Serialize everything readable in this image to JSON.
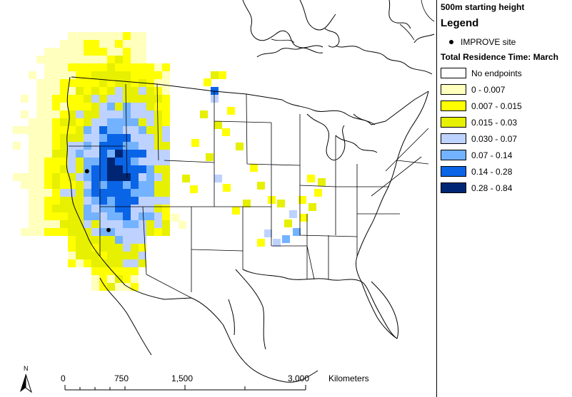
{
  "heading": "500m starting height",
  "legend": {
    "title": "Legend",
    "site_label": "IMPROVE site",
    "subtitle": "Total Residence Time: March",
    "classes": [
      {
        "label": "No endpoints",
        "color": "#ffffff"
      },
      {
        "label": "0 - 0.007",
        "color": "#ffffbe"
      },
      {
        "label": "0.007 - 0.015",
        "color": "#ffff00"
      },
      {
        "label": "0.015 - 0.03",
        "color": "#e6f000"
      },
      {
        "label": "0.030 - 0.07",
        "color": "#bed2ff"
      },
      {
        "label": "0.07 - 0.14",
        "color": "#73b2ff"
      },
      {
        "label": "0.14 - 0.28",
        "color": "#0a64e6"
      },
      {
        "label": "0.28 - 0.84",
        "color": "#002673"
      }
    ]
  },
  "scale_bar": {
    "ticks": [
      "0",
      "750",
      "1,500",
      "3,000"
    ],
    "unit": "Kilometers"
  },
  "north_arrow": {
    "label": "N",
    "icon": "north-arrow-icon"
  },
  "map": {
    "improve_sites": [
      {
        "lon": -117.7,
        "lat": 41.5
      },
      {
        "lon": -115.0,
        "lat": 36.5
      }
    ]
  }
}
